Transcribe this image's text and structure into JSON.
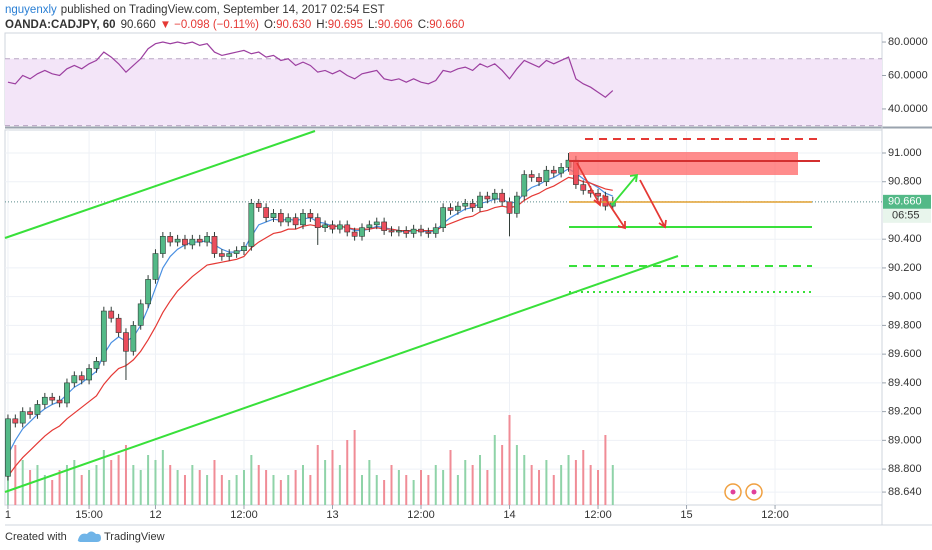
{
  "header": {
    "author": "nguyenxly",
    "published": "published on TradingView.com, September 14, 2017 02:54 EST",
    "symbol": "OANDA:CADJPY, 60",
    "last": "90.660",
    "arrow": "▼",
    "change": "−0.098 (−0.11%)",
    "ohlc": [
      {
        "key": "O:",
        "value": "90.630"
      },
      {
        "key": "H:",
        "value": "90.695"
      },
      {
        "key": "L:",
        "value": "90.606"
      },
      {
        "key": "C:",
        "value": "90.660"
      }
    ]
  },
  "footer": {
    "created": "Created with",
    "brand": "TradingView"
  },
  "chart_data": {
    "type": "candlestick",
    "open": [
      88.75,
      89.15,
      89.12,
      89.2,
      89.18,
      89.25,
      89.3,
      89.28,
      89.26,
      89.4,
      89.45,
      89.42,
      89.5,
      89.55,
      89.9,
      89.85,
      89.75,
      89.62,
      89.8,
      89.95,
      90.12,
      90.3,
      90.42,
      90.38,
      90.4,
      90.36,
      90.4,
      90.38,
      90.42,
      90.3,
      90.28,
      90.3,
      90.32,
      90.35,
      90.65,
      90.62,
      90.55,
      90.58,
      90.52,
      90.55,
      90.5,
      90.58,
      90.55,
      90.48,
      90.5,
      90.47,
      90.5,
      90.45,
      90.42,
      90.48,
      90.5,
      90.52,
      90.46,
      90.45,
      90.46,
      90.44,
      90.47,
      90.45,
      90.44,
      90.48,
      90.62,
      90.6,
      90.63,
      90.65,
      90.62,
      90.7,
      90.68,
      90.72,
      90.66,
      90.58,
      90.7,
      90.85,
      90.83,
      90.8,
      90.88,
      90.86,
      90.9,
      90.95,
      90.78,
      90.74,
      90.72,
      90.7,
      90.63
    ],
    "high": [
      89.18,
      89.18,
      89.23,
      89.23,
      89.28,
      89.33,
      89.33,
      89.31,
      89.43,
      89.48,
      89.48,
      89.53,
      89.58,
      89.93,
      89.93,
      89.88,
      89.78,
      89.83,
      89.98,
      90.15,
      90.33,
      90.45,
      90.45,
      90.43,
      90.43,
      90.43,
      90.43,
      90.45,
      90.45,
      90.33,
      90.33,
      90.35,
      90.38,
      90.68,
      90.68,
      90.65,
      90.61,
      90.61,
      90.58,
      90.58,
      90.61,
      90.61,
      90.58,
      90.53,
      90.53,
      90.53,
      90.53,
      90.48,
      90.51,
      90.53,
      90.55,
      90.55,
      90.49,
      90.49,
      90.49,
      90.5,
      90.5,
      90.48,
      90.51,
      90.65,
      90.65,
      90.66,
      90.68,
      90.68,
      90.73,
      90.73,
      90.75,
      90.75,
      90.69,
      90.73,
      90.88,
      90.88,
      90.86,
      90.91,
      90.91,
      90.93,
      91.0,
      90.98,
      90.81,
      90.77,
      90.75,
      90.73,
      90.695
    ],
    "low": [
      88.72,
      89.09,
      89.09,
      89.15,
      89.15,
      89.22,
      89.25,
      89.23,
      89.23,
      89.37,
      89.39,
      89.39,
      89.47,
      89.52,
      89.82,
      89.72,
      89.42,
      89.59,
      89.77,
      89.92,
      90.09,
      90.27,
      90.35,
      90.35,
      90.33,
      90.33,
      90.35,
      90.35,
      90.27,
      90.25,
      90.25,
      90.27,
      90.29,
      90.32,
      90.59,
      90.52,
      90.52,
      90.49,
      90.49,
      90.47,
      90.47,
      90.52,
      90.36,
      90.45,
      90.44,
      90.44,
      90.42,
      90.39,
      90.39,
      90.45,
      90.47,
      90.43,
      90.42,
      90.42,
      90.41,
      90.41,
      90.42,
      90.41,
      90.41,
      90.45,
      90.57,
      90.57,
      90.6,
      90.59,
      90.59,
      90.65,
      90.65,
      90.63,
      90.42,
      90.55,
      90.67,
      90.8,
      90.77,
      90.77,
      90.83,
      90.83,
      90.87,
      90.75,
      90.71,
      90.69,
      90.67,
      90.6,
      90.606
    ],
    "close": [
      89.15,
      89.12,
      89.2,
      89.18,
      89.25,
      89.3,
      89.28,
      89.26,
      89.4,
      89.45,
      89.42,
      89.5,
      89.55,
      89.9,
      89.85,
      89.75,
      89.62,
      89.8,
      89.95,
      90.12,
      90.3,
      90.42,
      90.38,
      90.4,
      90.36,
      90.4,
      90.38,
      90.42,
      90.3,
      90.28,
      90.3,
      90.32,
      90.35,
      90.65,
      90.62,
      90.55,
      90.58,
      90.52,
      90.55,
      90.5,
      90.58,
      90.55,
      90.48,
      90.5,
      90.47,
      90.5,
      90.45,
      90.42,
      90.48,
      90.5,
      90.52,
      90.46,
      90.45,
      90.46,
      90.44,
      90.47,
      90.45,
      90.44,
      90.48,
      90.62,
      90.6,
      90.63,
      90.65,
      90.62,
      90.7,
      90.68,
      90.72,
      90.66,
      90.58,
      90.7,
      90.85,
      90.83,
      90.8,
      90.88,
      90.86,
      90.9,
      90.95,
      90.78,
      90.74,
      90.72,
      90.7,
      90.63,
      90.66
    ],
    "up_color": "#53b987",
    "down_color": "#eb4d5c",
    "moving_averages": [
      {
        "color": "#4a90e2",
        "values": [
          88.9,
          89.0,
          89.08,
          89.13,
          89.18,
          89.22,
          89.25,
          89.27,
          89.32,
          89.37,
          89.4,
          89.44,
          89.48,
          89.6,
          89.68,
          89.72,
          89.69,
          89.72,
          89.8,
          89.92,
          90.06,
          90.2,
          90.28,
          90.33,
          90.36,
          90.38,
          90.38,
          90.39,
          90.36,
          90.33,
          90.31,
          90.31,
          90.33,
          90.42,
          90.5,
          90.52,
          90.54,
          90.53,
          90.54,
          90.53,
          90.54,
          90.55,
          90.52,
          90.51,
          90.49,
          90.49,
          90.48,
          90.46,
          90.46,
          90.47,
          90.49,
          90.48,
          90.47,
          90.46,
          90.45,
          90.46,
          90.46,
          90.45,
          90.46,
          90.51,
          90.55,
          90.58,
          90.61,
          90.62,
          90.65,
          90.66,
          90.68,
          90.68,
          90.65,
          90.66,
          90.72,
          90.76,
          90.78,
          90.81,
          90.83,
          90.86,
          90.89,
          90.86,
          90.82,
          90.79,
          90.76,
          90.72,
          90.7
        ]
      },
      {
        "color": "#e53935",
        "values": [
          88.75,
          88.82,
          88.88,
          88.93,
          88.98,
          89.03,
          89.07,
          89.1,
          89.15,
          89.19,
          89.23,
          89.27,
          89.31,
          89.39,
          89.45,
          89.5,
          89.52,
          89.56,
          89.62,
          89.7,
          89.79,
          89.89,
          89.97,
          90.04,
          90.09,
          90.14,
          90.18,
          90.22,
          90.23,
          90.24,
          90.25,
          90.26,
          90.28,
          90.34,
          90.38,
          90.41,
          90.44,
          90.45,
          90.47,
          90.47,
          90.49,
          90.5,
          90.49,
          90.49,
          90.49,
          90.49,
          90.48,
          90.47,
          90.47,
          90.47,
          90.48,
          90.47,
          90.47,
          90.46,
          90.46,
          90.46,
          90.46,
          90.46,
          90.46,
          90.49,
          90.51,
          90.53,
          90.55,
          90.56,
          90.59,
          90.6,
          90.62,
          90.63,
          90.62,
          90.63,
          90.67,
          90.7,
          90.72,
          90.75,
          90.77,
          90.8,
          90.83,
          90.82,
          90.8,
          90.79,
          90.77,
          90.75,
          90.74
        ]
      }
    ],
    "volume": {
      "up_color": "#8fd3a8",
      "down_color": "#f08c96",
      "values": [
        70,
        60,
        45,
        35,
        40,
        30,
        25,
        35,
        40,
        45,
        30,
        35,
        40,
        55,
        45,
        50,
        60,
        40,
        35,
        50,
        45,
        55,
        40,
        35,
        30,
        40,
        35,
        30,
        45,
        30,
        25,
        30,
        35,
        50,
        40,
        35,
        30,
        25,
        30,
        35,
        40,
        30,
        60,
        45,
        55,
        40,
        65,
        75,
        30,
        45,
        30,
        25,
        40,
        35,
        30,
        25,
        35,
        30,
        40,
        35,
        55,
        30,
        45,
        40,
        50,
        35,
        70,
        60,
        90,
        60,
        50,
        40,
        35,
        45,
        30,
        40,
        50,
        45,
        55,
        40,
        35,
        70,
        40
      ]
    },
    "rsi": {
      "color": "#9c3fa0",
      "fill": "#f3e5f8",
      "values": [
        56,
        55,
        60,
        58,
        61,
        63,
        61,
        60,
        64,
        66,
        64,
        67,
        69,
        74,
        71,
        67,
        62,
        66,
        70,
        76,
        79,
        80,
        79,
        80,
        79,
        80,
        78,
        79,
        74,
        72,
        73,
        74,
        75,
        73,
        74,
        71,
        72,
        69,
        70,
        66,
        68,
        66,
        62,
        63,
        61,
        63,
        60,
        58,
        61,
        62,
        63,
        58,
        57,
        58,
        56,
        58,
        56,
        55,
        57,
        63,
        62,
        64,
        65,
        63,
        67,
        65,
        67,
        63,
        58,
        64,
        69,
        67,
        65,
        69,
        67,
        69,
        71,
        58,
        55,
        53,
        50,
        47,
        51
      ],
      "ylim": [
        30.4,
        85.4
      ],
      "levels": [
        70,
        30
      ],
      "yticks": [
        {
          "value": 80,
          "label": "80.0000"
        },
        {
          "value": 60,
          "label": "60.0000"
        },
        {
          "value": 40,
          "label": "40.0000"
        }
      ]
    },
    "ylim": [
      88.55,
      91.16
    ],
    "yticks": [
      {
        "value": 91,
        "label": "91.000"
      },
      {
        "value": 90.8,
        "label": "90.800"
      },
      {
        "value": 90.4,
        "label": "90.400"
      },
      {
        "value": 90.2,
        "label": "90.200"
      },
      {
        "value": 90,
        "label": "90.000"
      },
      {
        "value": 89.8,
        "label": "89.800"
      },
      {
        "value": 89.6,
        "label": "89.600"
      },
      {
        "value": 89.4,
        "label": "89.400"
      },
      {
        "value": 89.2,
        "label": "89.200"
      },
      {
        "value": 89,
        "label": "89.000"
      },
      {
        "value": 88.8,
        "label": "88.800"
      },
      {
        "value": 88.64,
        "label": "88.640"
      }
    ],
    "xlim": [
      -0.4,
      118.5
    ],
    "xticks": [
      {
        "value": 0,
        "label": "1"
      },
      {
        "value": 11,
        "label": "15:00"
      },
      {
        "value": 20,
        "label": "12"
      },
      {
        "value": 32,
        "label": "12:00"
      },
      {
        "value": 44,
        "label": "13"
      },
      {
        "value": 56,
        "label": "12:00"
      },
      {
        "value": 68,
        "label": "14"
      },
      {
        "value": 80,
        "label": "12:00"
      },
      {
        "value": 92,
        "label": "15"
      },
      {
        "value": 104,
        "label": "12:00"
      }
    ],
    "grid": true,
    "price_label": "90.660",
    "countdown": "06:55"
  }
}
